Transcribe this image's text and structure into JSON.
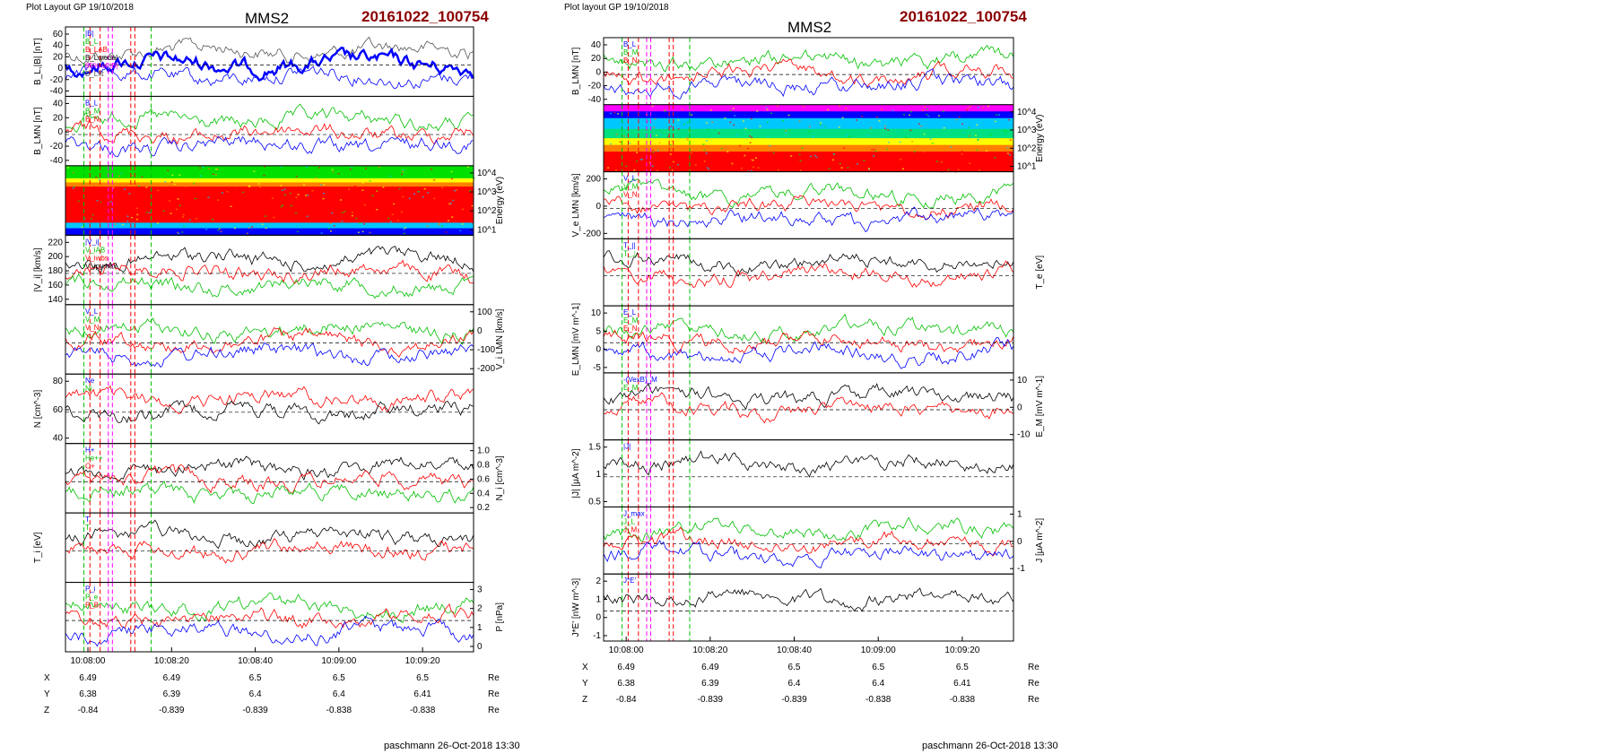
{
  "pages": [
    {
      "layout_label": "Plot Layout GP 19/10/2018",
      "title": "MMS2",
      "event_id": "20161022_100754",
      "footer": "paschmann 26-Oct-2018 13:30",
      "time_ticks": [
        "10:08:00",
        "10:08:20",
        "10:08:40",
        "10:09:00",
        "10:09:20"
      ],
      "coords": {
        "X": [
          "6.49",
          "6.49",
          "6.5",
          "6.5",
          "6.5"
        ],
        "Y": [
          "6.38",
          "6.39",
          "6.4",
          "6.4",
          "6.41"
        ],
        "Z": [
          "-0.84",
          "-0.839",
          "-0.839",
          "-0.838",
          "-0.838"
        ],
        "unit": "Re"
      },
      "panels": [
        {
          "name": "bl-btot",
          "ylabel": "B_L,|B| [nT]",
          "ticks": [
            "60",
            "40",
            "20",
            "0",
            "-20",
            "-40"
          ],
          "tick_side": "left",
          "legend": [
            "|B|",
            "B_L",
            "B_LAB",
            "B_Lmodel",
            "85% of |B|",
            "B_Lfit"
          ]
        },
        {
          "name": "b-lmn",
          "ylabel": "B_LMN [nT]",
          "ticks": [
            "40",
            "20",
            "0",
            "-20",
            "-40"
          ],
          "tick_side": "left",
          "legend": [
            "B_L",
            "B_M",
            "B_N"
          ]
        },
        {
          "name": "ion-spectrogram",
          "ylabel": "Energy (eV)",
          "ticks": [
            "10^4",
            "10^3",
            "10^2",
            "10^1"
          ],
          "tick_side": "right",
          "legend": []
        },
        {
          "name": "vi-mag",
          "ylabel": "|V_i| [km/s]",
          "ticks": [
            "220",
            "200",
            "180",
            "160",
            "140"
          ],
          "tick_side": "left",
          "legend": [
            "|V_i|",
            "V_iAB",
            "V_iwbs",
            "V_ipymax"
          ]
        },
        {
          "name": "vi-lmn",
          "ylabel": "V_i LMN [km/s]",
          "ticks": [
            "100",
            "0",
            "-100",
            "-200"
          ],
          "tick_side": "right",
          "legend": [
            "V_L",
            "V_M",
            "V_N"
          ]
        },
        {
          "name": "density",
          "ylabel": "N [cm^-3]",
          "ticks": [
            "80",
            "60",
            "40"
          ],
          "tick_side": "left",
          "legend": [
            "Ne",
            "Ni"
          ]
        },
        {
          "name": "ni-species",
          "ylabel": "N_i [cm^-3]",
          "ticks": [
            "1.0",
            "0.8",
            "0.6",
            "0.4",
            "0.2"
          ],
          "tick_side": "right",
          "legend": [
            "H+",
            "He++",
            "O+"
          ]
        },
        {
          "name": "ti",
          "ylabel": "T_i [eV]",
          "ticks": [],
          "tick_side": "left",
          "legend": [
            "T",
            "T"
          ]
        },
        {
          "name": "pressure",
          "ylabel": "P [nPa]",
          "ticks": [
            "3",
            "2",
            "1",
            "0"
          ],
          "tick_side": "right",
          "legend": [
            "P_i",
            "P_e",
            "P_B"
          ]
        }
      ]
    },
    {
      "layout_label": "Plot layout GP 19/10/2018",
      "title": "MMS2",
      "event_id": "20161022_100754",
      "footer": "paschmann 26-Oct-2018 13:30",
      "time_ticks": [
        "10:08:00",
        "10:08:20",
        "10:08:40",
        "10:09:00",
        "10:09:20"
      ],
      "coords": {
        "X": [
          "6.49",
          "6.49",
          "6.5",
          "6.5",
          "6.5"
        ],
        "Y": [
          "6.38",
          "6.39",
          "6.4",
          "6.4",
          "6.41"
        ],
        "Z": [
          "-0.84",
          "-0.839",
          "-0.839",
          "-0.838",
          "-0.838"
        ],
        "unit": "Re"
      },
      "panels": [
        {
          "name": "b-lmn",
          "ylabel": "B_LMN [nT]",
          "ticks": [
            "40",
            "20",
            "0",
            "-20",
            "-40"
          ],
          "tick_side": "left",
          "legend": [
            "B_L",
            "B_M",
            "B_N"
          ]
        },
        {
          "name": "electron-spectrogram",
          "ylabel": "Energy (eV)",
          "ticks": [
            "10^4",
            "10^3",
            "10^2",
            "10^1"
          ],
          "tick_side": "right",
          "legend": []
        },
        {
          "name": "ve-lmn",
          "ylabel": "V_e LMN [km/s]",
          "ticks": [
            "200",
            "0",
            "-200"
          ],
          "tick_side": "left",
          "legend": [
            "V_L",
            "V_M",
            "V_N"
          ]
        },
        {
          "name": "te",
          "ylabel": "T_e [eV]",
          "ticks": [],
          "tick_side": "right",
          "legend": [
            "T_||",
            "T_⊥"
          ]
        },
        {
          "name": "e-lmn",
          "ylabel": "E_LMN [mV m^-1]",
          "ticks": [
            "10",
            "5",
            "0",
            "-5"
          ],
          "tick_side": "left",
          "legend": [
            "E_L",
            "E_M",
            "E_N"
          ]
        },
        {
          "name": "em",
          "ylabel": "E_M [mV m^-1]",
          "ticks": [
            "10",
            "0",
            "-10"
          ],
          "tick_side": "right",
          "legend": [
            "-(VexB)_M",
            "E_M"
          ]
        },
        {
          "name": "j-mag",
          "ylabel": "|J| [μA m^-2]",
          "ticks": [
            "1.5",
            "1",
            "0.5"
          ],
          "tick_side": "left",
          "legend": [
            "|J|"
          ]
        },
        {
          "name": "j-lmn",
          "ylabel": "J [μA m^-2]",
          "ticks": [
            "1",
            "0",
            "-1"
          ],
          "tick_side": "right",
          "legend": [
            "J_max",
            "J_L",
            "J_M"
          ]
        },
        {
          "name": "jdote",
          "ylabel": "J*E' [nW m^-3]",
          "ticks": [
            "2",
            "1",
            "0",
            "-1"
          ],
          "tick_side": "left",
          "legend": [
            "J*E'"
          ]
        }
      ]
    }
  ],
  "chart_data": [
    {
      "type": "line",
      "title": "MMS2",
      "subtitle": "20161022_100754",
      "xlabel": "",
      "x_ticks": [
        "10:08:00",
        "10:08:20",
        "10:08:40",
        "10:09:00",
        "10:09:20"
      ],
      "stack": [
        {
          "ylabel": "B_L,|B| [nT]",
          "ylim": [
            -40,
            60
          ],
          "series": [
            {
              "name": "|B|",
              "color": "#555555",
              "level": 40
            },
            {
              "name": "B_L",
              "color": "#0000ff",
              "level": -20
            }
          ]
        },
        {
          "ylabel": "B_LMN [nT]",
          "ylim": [
            -50,
            50
          ],
          "series": [
            {
              "name": "B_L",
              "color": "#0000ff",
              "level": -20
            },
            {
              "name": "B_M",
              "color": "#00c000",
              "level": -20
            },
            {
              "name": "B_N",
              "color": "#ff0000",
              "level": 0
            }
          ]
        },
        {
          "ylabel": "Energy (eV)",
          "type": "heatmap"
        },
        {
          "ylabel": "|V_i| [km/s]",
          "ylim": [
            130,
            225
          ],
          "series": [
            {
              "name": "|V_i|",
              "color": "#333333",
              "level": 170
            }
          ]
        },
        {
          "ylabel": "V_i LMN [km/s]",
          "ylim": [
            -250,
            150
          ],
          "series": [
            {
              "name": "V_L",
              "color": "#00c000",
              "level": 50
            },
            {
              "name": "V_M",
              "color": "#ff0000",
              "level": -5
            },
            {
              "name": "V_N",
              "color": "#0000ff",
              "level": -130
            }
          ]
        },
        {
          "ylabel": "N [cm^-3]",
          "ylim": [
            30,
            90
          ],
          "series": [
            {
              "name": "Ne",
              "color": "#ff0000",
              "level": 58
            },
            {
              "name": "Ni",
              "color": "#000000",
              "level": 65
            }
          ]
        },
        {
          "ylabel": "N_i [cm^-3]",
          "ylim": [
            0,
            1.1
          ],
          "series": [
            {
              "name": "H+",
              "color": "#ff0000",
              "values": [
                0.95,
                0.72,
                0.82,
                0.45,
                1.0,
                0.68,
                0.82,
                0.45,
                1.0
              ]
            },
            {
              "name": "O+",
              "color": "#0000ff",
              "level": 0.03
            }
          ]
        },
        {
          "ylabel": "T_i [eV]",
          "series": [
            {
              "name": "T",
              "color": "#000000"
            },
            {
              "name": "T",
              "color": "#ff0000"
            }
          ]
        },
        {
          "ylabel": "P [nPa]",
          "ylim": [
            0,
            3
          ],
          "series": [
            {
              "name": "P_i",
              "color": "#0000ff",
              "level": 2.5
            },
            {
              "name": "P_e",
              "color": "#00c000",
              "level": 1.6
            },
            {
              "name": "P_B",
              "color": "#000000",
              "level": 0.3
            }
          ]
        }
      ]
    },
    {
      "type": "line",
      "title": "MMS2",
      "subtitle": "20161022_100754",
      "xlabel": "",
      "x_ticks": [
        "10:08:00",
        "10:08:20",
        "10:08:40",
        "10:09:00",
        "10:09:20"
      ],
      "stack": [
        {
          "ylabel": "B_LMN [nT]",
          "ylim": [
            -50,
            50
          ]
        },
        {
          "ylabel": "Energy (eV)",
          "type": "heatmap"
        },
        {
          "ylabel": "V_e LMN [km/s]",
          "ylim": [
            -300,
            300
          ]
        },
        {
          "ylabel": "T_e [eV]"
        },
        {
          "ylabel": "E_LMN [mV m^-1]",
          "ylim": [
            -6,
            12
          ]
        },
        {
          "ylabel": "E_M [mV m^-1]",
          "ylim": [
            -15,
            15
          ]
        },
        {
          "ylabel": "|J| [μA m^-2]",
          "ylim": [
            0,
            1.7
          ]
        },
        {
          "ylabel": "J [μA m^-2]",
          "ylim": [
            -1.5,
            1.5
          ]
        },
        {
          "ylabel": "J*E' [nW m^-3]",
          "ylim": [
            -1.2,
            2.4
          ]
        }
      ]
    }
  ],
  "colors": {
    "red": "#ff0000",
    "green": "#00c000",
    "blue": "#0000ff",
    "black": "#000000",
    "gray": "#555555",
    "magenta": "#ff00ff",
    "title_red": "#8b0000"
  }
}
